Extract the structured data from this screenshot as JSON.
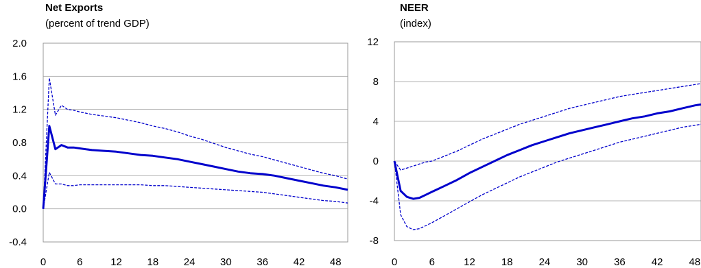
{
  "colors": {
    "line": "#0000CC",
    "grid": "#B3B3B3",
    "axis": "#999999"
  },
  "chart_data": [
    {
      "type": "line",
      "title": "Net Exports",
      "subtitle": "(percent of trend GDP)",
      "xlabel": "",
      "ylabel": "",
      "xlim": [
        0,
        50
      ],
      "ylim": [
        -0.4,
        2.0
      ],
      "xticks": [
        0,
        6,
        12,
        18,
        24,
        30,
        36,
        42,
        48
      ],
      "yticks": [
        "2.0",
        "1.6",
        "1.2",
        "0.8",
        "0.4",
        "0.0",
        "-0.4"
      ],
      "grid": "horizontal",
      "series": [
        {
          "role": "point-estimate",
          "style": "solid",
          "x": [
            0,
            1,
            2,
            3,
            4,
            5,
            6,
            8,
            10,
            12,
            14,
            16,
            18,
            20,
            22,
            24,
            26,
            28,
            30,
            32,
            34,
            36,
            38,
            40,
            42,
            44,
            46,
            48,
            50
          ],
          "y": [
            0.0,
            1.0,
            0.72,
            0.77,
            0.74,
            0.74,
            0.73,
            0.71,
            0.7,
            0.69,
            0.67,
            0.65,
            0.64,
            0.62,
            0.6,
            0.57,
            0.54,
            0.51,
            0.48,
            0.45,
            0.43,
            0.42,
            0.4,
            0.37,
            0.34,
            0.31,
            0.28,
            0.26,
            0.23
          ]
        },
        {
          "role": "upper-band",
          "style": "dashed",
          "x": [
            0,
            1,
            2,
            3,
            4,
            5,
            6,
            8,
            10,
            12,
            14,
            16,
            18,
            20,
            22,
            24,
            26,
            28,
            30,
            32,
            34,
            36,
            38,
            40,
            42,
            44,
            46,
            48,
            50
          ],
          "y": [
            0.0,
            1.58,
            1.13,
            1.25,
            1.2,
            1.19,
            1.17,
            1.14,
            1.12,
            1.1,
            1.07,
            1.04,
            1.0,
            0.97,
            0.93,
            0.88,
            0.84,
            0.79,
            0.74,
            0.7,
            0.66,
            0.63,
            0.59,
            0.55,
            0.51,
            0.47,
            0.43,
            0.4,
            0.36
          ]
        },
        {
          "role": "lower-band",
          "style": "dashed",
          "x": [
            0,
            1,
            2,
            3,
            4,
            5,
            6,
            8,
            10,
            12,
            14,
            16,
            18,
            20,
            22,
            24,
            26,
            28,
            30,
            32,
            34,
            36,
            38,
            40,
            42,
            44,
            46,
            48,
            50
          ],
          "y": [
            0.0,
            0.44,
            0.3,
            0.3,
            0.28,
            0.28,
            0.29,
            0.29,
            0.29,
            0.29,
            0.29,
            0.29,
            0.28,
            0.28,
            0.27,
            0.26,
            0.25,
            0.24,
            0.23,
            0.22,
            0.21,
            0.2,
            0.18,
            0.16,
            0.14,
            0.12,
            0.1,
            0.09,
            0.07
          ]
        }
      ]
    },
    {
      "type": "line",
      "title": "NEER",
      "subtitle": "(index)",
      "xlabel": "",
      "ylabel": "",
      "xlim": [
        0,
        49
      ],
      "ylim": [
        -8,
        12
      ],
      "xticks": [
        0,
        6,
        12,
        18,
        24,
        30,
        36,
        42,
        48
      ],
      "yticks": [
        "12",
        "8",
        "4",
        "0",
        "-4",
        "-8"
      ],
      "grid": "horizontal",
      "series": [
        {
          "role": "point-estimate",
          "style": "solid",
          "x": [
            0,
            1,
            2,
            3,
            4,
            5,
            6,
            8,
            10,
            12,
            14,
            16,
            18,
            20,
            22,
            24,
            26,
            28,
            30,
            32,
            34,
            36,
            38,
            40,
            42,
            44,
            46,
            48,
            49
          ],
          "y": [
            0.0,
            -3.0,
            -3.6,
            -3.8,
            -3.7,
            -3.4,
            -3.1,
            -2.5,
            -1.9,
            -1.2,
            -0.6,
            0.0,
            0.6,
            1.1,
            1.6,
            2.0,
            2.4,
            2.8,
            3.1,
            3.4,
            3.7,
            4.0,
            4.3,
            4.5,
            4.8,
            5.0,
            5.3,
            5.6,
            5.7
          ]
        },
        {
          "role": "upper-band",
          "style": "dashed",
          "x": [
            0,
            1,
            2,
            3,
            4,
            5,
            6,
            8,
            10,
            12,
            14,
            16,
            18,
            20,
            22,
            24,
            26,
            28,
            30,
            32,
            34,
            36,
            38,
            40,
            42,
            44,
            46,
            48,
            49
          ],
          "y": [
            0.0,
            -0.9,
            -0.7,
            -0.5,
            -0.3,
            -0.1,
            0.0,
            0.5,
            1.0,
            1.6,
            2.2,
            2.7,
            3.2,
            3.7,
            4.1,
            4.5,
            4.9,
            5.3,
            5.6,
            5.9,
            6.2,
            6.5,
            6.7,
            6.9,
            7.1,
            7.3,
            7.5,
            7.7,
            7.8
          ]
        },
        {
          "role": "lower-band",
          "style": "dashed",
          "x": [
            0,
            1,
            2,
            3,
            4,
            5,
            6,
            8,
            10,
            12,
            14,
            16,
            18,
            20,
            22,
            24,
            26,
            28,
            30,
            32,
            34,
            36,
            38,
            40,
            42,
            44,
            46,
            48,
            49
          ],
          "y": [
            0.0,
            -5.4,
            -6.6,
            -6.9,
            -6.8,
            -6.5,
            -6.2,
            -5.5,
            -4.8,
            -4.1,
            -3.4,
            -2.8,
            -2.2,
            -1.6,
            -1.1,
            -0.6,
            -0.1,
            0.3,
            0.7,
            1.1,
            1.5,
            1.9,
            2.2,
            2.5,
            2.8,
            3.1,
            3.4,
            3.6,
            3.7
          ]
        }
      ]
    }
  ]
}
